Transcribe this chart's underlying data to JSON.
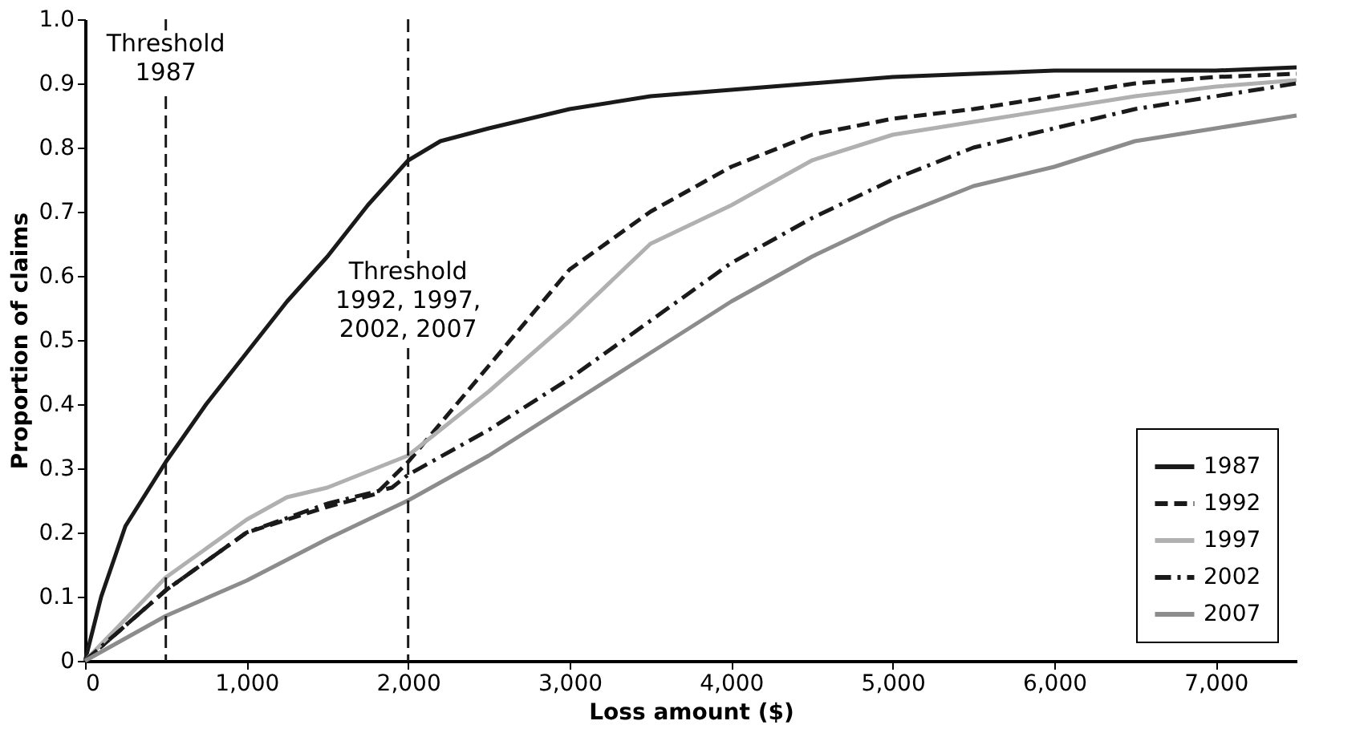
{
  "chart_data": {
    "type": "line",
    "xlabel": "Loss amount ($)",
    "ylabel": "Proportion of claims",
    "xlim": [
      0,
      7500
    ],
    "ylim": [
      0,
      1
    ],
    "xticks": [
      0,
      {
        "value": 1000,
        "label": "1,000"
      },
      {
        "value": 2000,
        "label": "2,000"
      },
      {
        "value": 3000,
        "label": "3,000"
      },
      {
        "value": 4000,
        "label": "4,000"
      },
      {
        "value": 5000,
        "label": "5,000"
      },
      {
        "value": 6000,
        "label": "6,000"
      },
      {
        "value": 7000,
        "label": "7,000"
      }
    ],
    "yticks": [
      0,
      0.1,
      0.2,
      0.3,
      0.4,
      0.5,
      0.6,
      0.7,
      0.8,
      0.9,
      {
        "value": 1,
        "label": "1.0"
      }
    ],
    "grid": false,
    "legend": "bottom right",
    "marker": "none",
    "ref_lines": [
      {
        "axis": "x",
        "value": 500,
        "label": "Threshold\n1987",
        "color": "#1a1a1a",
        "line_style": "dashed"
      },
      {
        "axis": "x",
        "value": 2000,
        "label": "Threshold\n1992, 1997,\n2002, 2007",
        "color": "#1a1a1a",
        "line_style": "dashed"
      }
    ],
    "series": [
      {
        "name": "1987",
        "color": "#1a1a1a",
        "line_style": "solid",
        "x": [
          0,
          100,
          250,
          500,
          750,
          1000,
          1250,
          1500,
          1750,
          2000,
          2200,
          2500,
          3000,
          3500,
          4000,
          4500,
          5000,
          5500,
          6000,
          7000,
          7500
        ],
        "values": [
          0,
          0.1,
          0.21,
          0.31,
          0.4,
          0.48,
          0.56,
          0.63,
          0.71,
          0.78,
          0.81,
          0.83,
          0.86,
          0.88,
          0.89,
          0.9,
          0.91,
          0.915,
          0.92,
          0.92,
          0.925
        ]
      },
      {
        "name": "1992",
        "color": "#1a1a1a",
        "line_style": "dashed",
        "x": [
          0,
          500,
          1000,
          1500,
          1800,
          2000,
          2500,
          3000,
          3500,
          4000,
          4500,
          5000,
          5500,
          6000,
          6500,
          7000,
          7500
        ],
        "values": [
          0,
          0.11,
          0.2,
          0.24,
          0.26,
          0.31,
          0.46,
          0.61,
          0.7,
          0.77,
          0.82,
          0.845,
          0.86,
          0.88,
          0.9,
          0.91,
          0.915
        ]
      },
      {
        "name": "1997",
        "color": "#b0b0b0",
        "line_style": "solid",
        "x": [
          0,
          500,
          1000,
          1250,
          1500,
          2000,
          2500,
          3000,
          3500,
          4000,
          4500,
          5000,
          5500,
          6000,
          6500,
          7000,
          7500
        ],
        "values": [
          0,
          0.13,
          0.22,
          0.255,
          0.27,
          0.32,
          0.42,
          0.53,
          0.65,
          0.71,
          0.78,
          0.82,
          0.84,
          0.86,
          0.88,
          0.895,
          0.905
        ]
      },
      {
        "name": "2002",
        "color": "#1a1a1a",
        "line_style": "dashdot",
        "x": [
          0,
          500,
          1000,
          1500,
          1900,
          2000,
          2500,
          3000,
          3500,
          4000,
          4500,
          5000,
          5500,
          6000,
          6500,
          7000,
          7500
        ],
        "values": [
          0,
          0.11,
          0.2,
          0.245,
          0.27,
          0.29,
          0.36,
          0.44,
          0.53,
          0.62,
          0.69,
          0.75,
          0.8,
          0.83,
          0.86,
          0.88,
          0.9
        ]
      },
      {
        "name": "2007",
        "color": "#8c8c8c",
        "line_style": "solid",
        "x": [
          0,
          500,
          1000,
          1500,
          2000,
          2500,
          3000,
          3500,
          4000,
          4500,
          5000,
          5500,
          6000,
          6500,
          7000,
          7500
        ],
        "values": [
          0,
          0.07,
          0.125,
          0.19,
          0.25,
          0.32,
          0.4,
          0.48,
          0.56,
          0.63,
          0.69,
          0.74,
          0.77,
          0.81,
          0.83,
          0.85
        ]
      }
    ]
  }
}
